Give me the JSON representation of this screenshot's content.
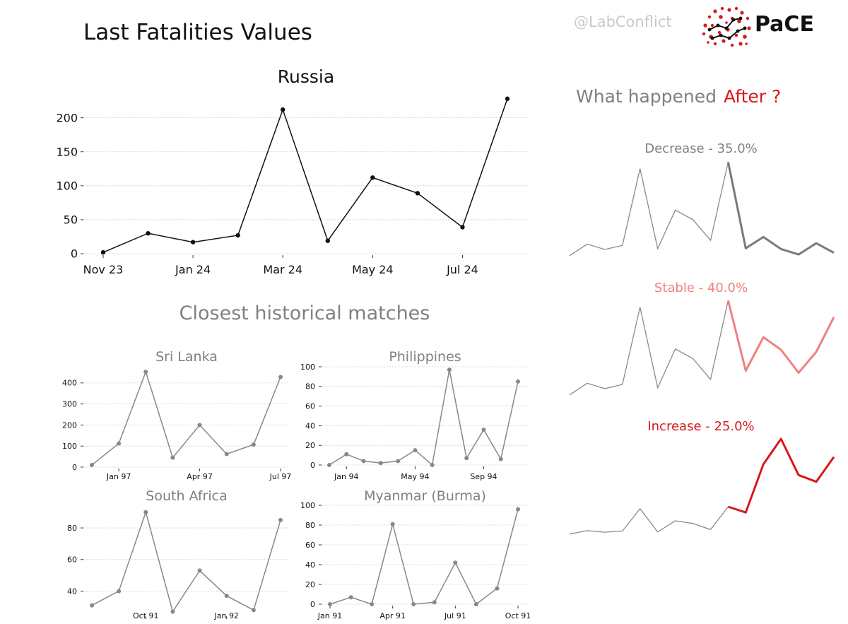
{
  "header": {
    "title": "Last Fatalities Values",
    "handle": "@LabConflict",
    "logo_text": "PaCE"
  },
  "scenarios_heading": {
    "prefix": "What happened",
    "highlight": "After ?"
  },
  "matches_heading": "Closest historical matches",
  "colors": {
    "main_line": "#111111",
    "grey": "#888888",
    "decrease": "#7a7a7a",
    "stable": "#f08080",
    "increase": "#d7191c",
    "grid": "#cccccc"
  },
  "chart_data": [
    {
      "id": "main",
      "type": "line",
      "title": "Russia",
      "x": [
        "Nov 23",
        "Dec 23",
        "Jan 24",
        "Feb 24",
        "Mar 24",
        "Apr 24",
        "May 24",
        "Jun 24",
        "Jul 24",
        "Aug 24"
      ],
      "values": [
        2,
        30,
        17,
        27,
        212,
        19,
        112,
        89,
        39,
        228
      ],
      "x_tick_labels": [
        "Nov 23",
        "",
        "Jan 24",
        "",
        "Mar 24",
        "",
        "May 24",
        "",
        "Jul 24",
        ""
      ],
      "yticks": [
        0,
        50,
        100,
        150,
        200
      ],
      "ylim": [
        0,
        235
      ],
      "grid": true
    },
    {
      "id": "srilanka",
      "type": "line",
      "title": "Sri Lanka",
      "x": [
        "Dec 96",
        "Jan 97",
        "Feb 97",
        "Mar 97",
        "Apr 97",
        "May 97",
        "Jun 97",
        "Jul 97"
      ],
      "values": [
        10,
        112,
        453,
        45,
        200,
        62,
        107,
        428
      ],
      "x_tick_labels": [
        "",
        "Jan 97",
        "",
        "",
        "Apr 97",
        "",
        "",
        "Jul 97"
      ],
      "yticks": [
        0,
        100,
        200,
        300,
        400
      ],
      "ylim": [
        0,
        470
      ],
      "grid": true
    },
    {
      "id": "philippines",
      "type": "line",
      "title": "Philippines",
      "x": [
        "Dec 93",
        "Jan 94",
        "Feb 94",
        "Mar 94",
        "Apr 94",
        "May 94",
        "Jun 94",
        "Jul 94",
        "Aug 94",
        "Sep 94",
        "Oct 94",
        "Nov 94"
      ],
      "values": [
        0,
        11,
        4,
        2,
        4,
        15,
        0,
        97,
        7,
        36,
        6,
        85
      ],
      "x_tick_labels": [
        "",
        "Jan 94",
        "",
        "",
        "",
        "May 94",
        "",
        "",
        "",
        "Sep 94",
        "",
        ""
      ],
      "yticks": [
        0,
        20,
        40,
        60,
        80,
        100
      ],
      "ylim": [
        0,
        100
      ],
      "grid": true
    },
    {
      "id": "southafrica",
      "type": "line",
      "title": "South Africa",
      "x": [
        "Aug 91",
        "Sep 91",
        "Oct 91",
        "Nov 91",
        "Dec 91",
        "Jan 92",
        "Feb 92",
        "Mar 92"
      ],
      "values": [
        31,
        40,
        90,
        27,
        53,
        37,
        28,
        85
      ],
      "x_tick_labels": [
        "",
        "",
        "Oct 91",
        "",
        "",
        "Jan 92",
        "",
        ""
      ],
      "yticks": [
        40,
        60,
        80
      ],
      "ylim": [
        25,
        93
      ],
      "grid": true
    },
    {
      "id": "myanmar",
      "type": "line",
      "title": "Myanmar (Burma)",
      "x": [
        "Jan 91",
        "Feb 91",
        "Mar 91",
        "Apr 91",
        "May 91",
        "Jun 91",
        "Jul 91",
        "Aug 91",
        "Sep 91",
        "Oct 91"
      ],
      "values": [
        0,
        7,
        0,
        81,
        0,
        2,
        42,
        0,
        16,
        96
      ],
      "x_tick_labels": [
        "Jan 91",
        "",
        "",
        "Apr 91",
        "",
        "",
        "Jul 91",
        "",
        "",
        "Oct 91"
      ],
      "yticks": [
        0,
        20,
        40,
        60,
        80,
        100
      ],
      "ylim": [
        0,
        100
      ],
      "grid": true
    },
    {
      "id": "decrease",
      "type": "line",
      "title": "Decrease - 35.0%",
      "history": [
        2,
        30,
        17,
        27,
        212,
        19,
        112,
        89,
        39,
        228
      ],
      "forecast": [
        228,
        20,
        47,
        18,
        5,
        32,
        9
      ],
      "ylim": [
        0,
        230
      ],
      "grid": false
    },
    {
      "id": "stable",
      "type": "line",
      "title": "Stable - 40.0%",
      "history": [
        2,
        30,
        17,
        27,
        212,
        19,
        112,
        89,
        39,
        228
      ],
      "forecast": [
        228,
        60,
        140,
        110,
        55,
        105,
        188
      ],
      "ylim": [
        0,
        230
      ],
      "grid": false
    },
    {
      "id": "increase",
      "type": "line",
      "title": "Increase - 25.0%",
      "history": [
        2,
        30,
        17,
        27,
        212,
        19,
        112,
        89,
        39,
        228
      ],
      "forecast": [
        228,
        180,
        580,
        790,
        490,
        435,
        640
      ],
      "ylim": [
        0,
        790
      ],
      "grid": false
    }
  ]
}
